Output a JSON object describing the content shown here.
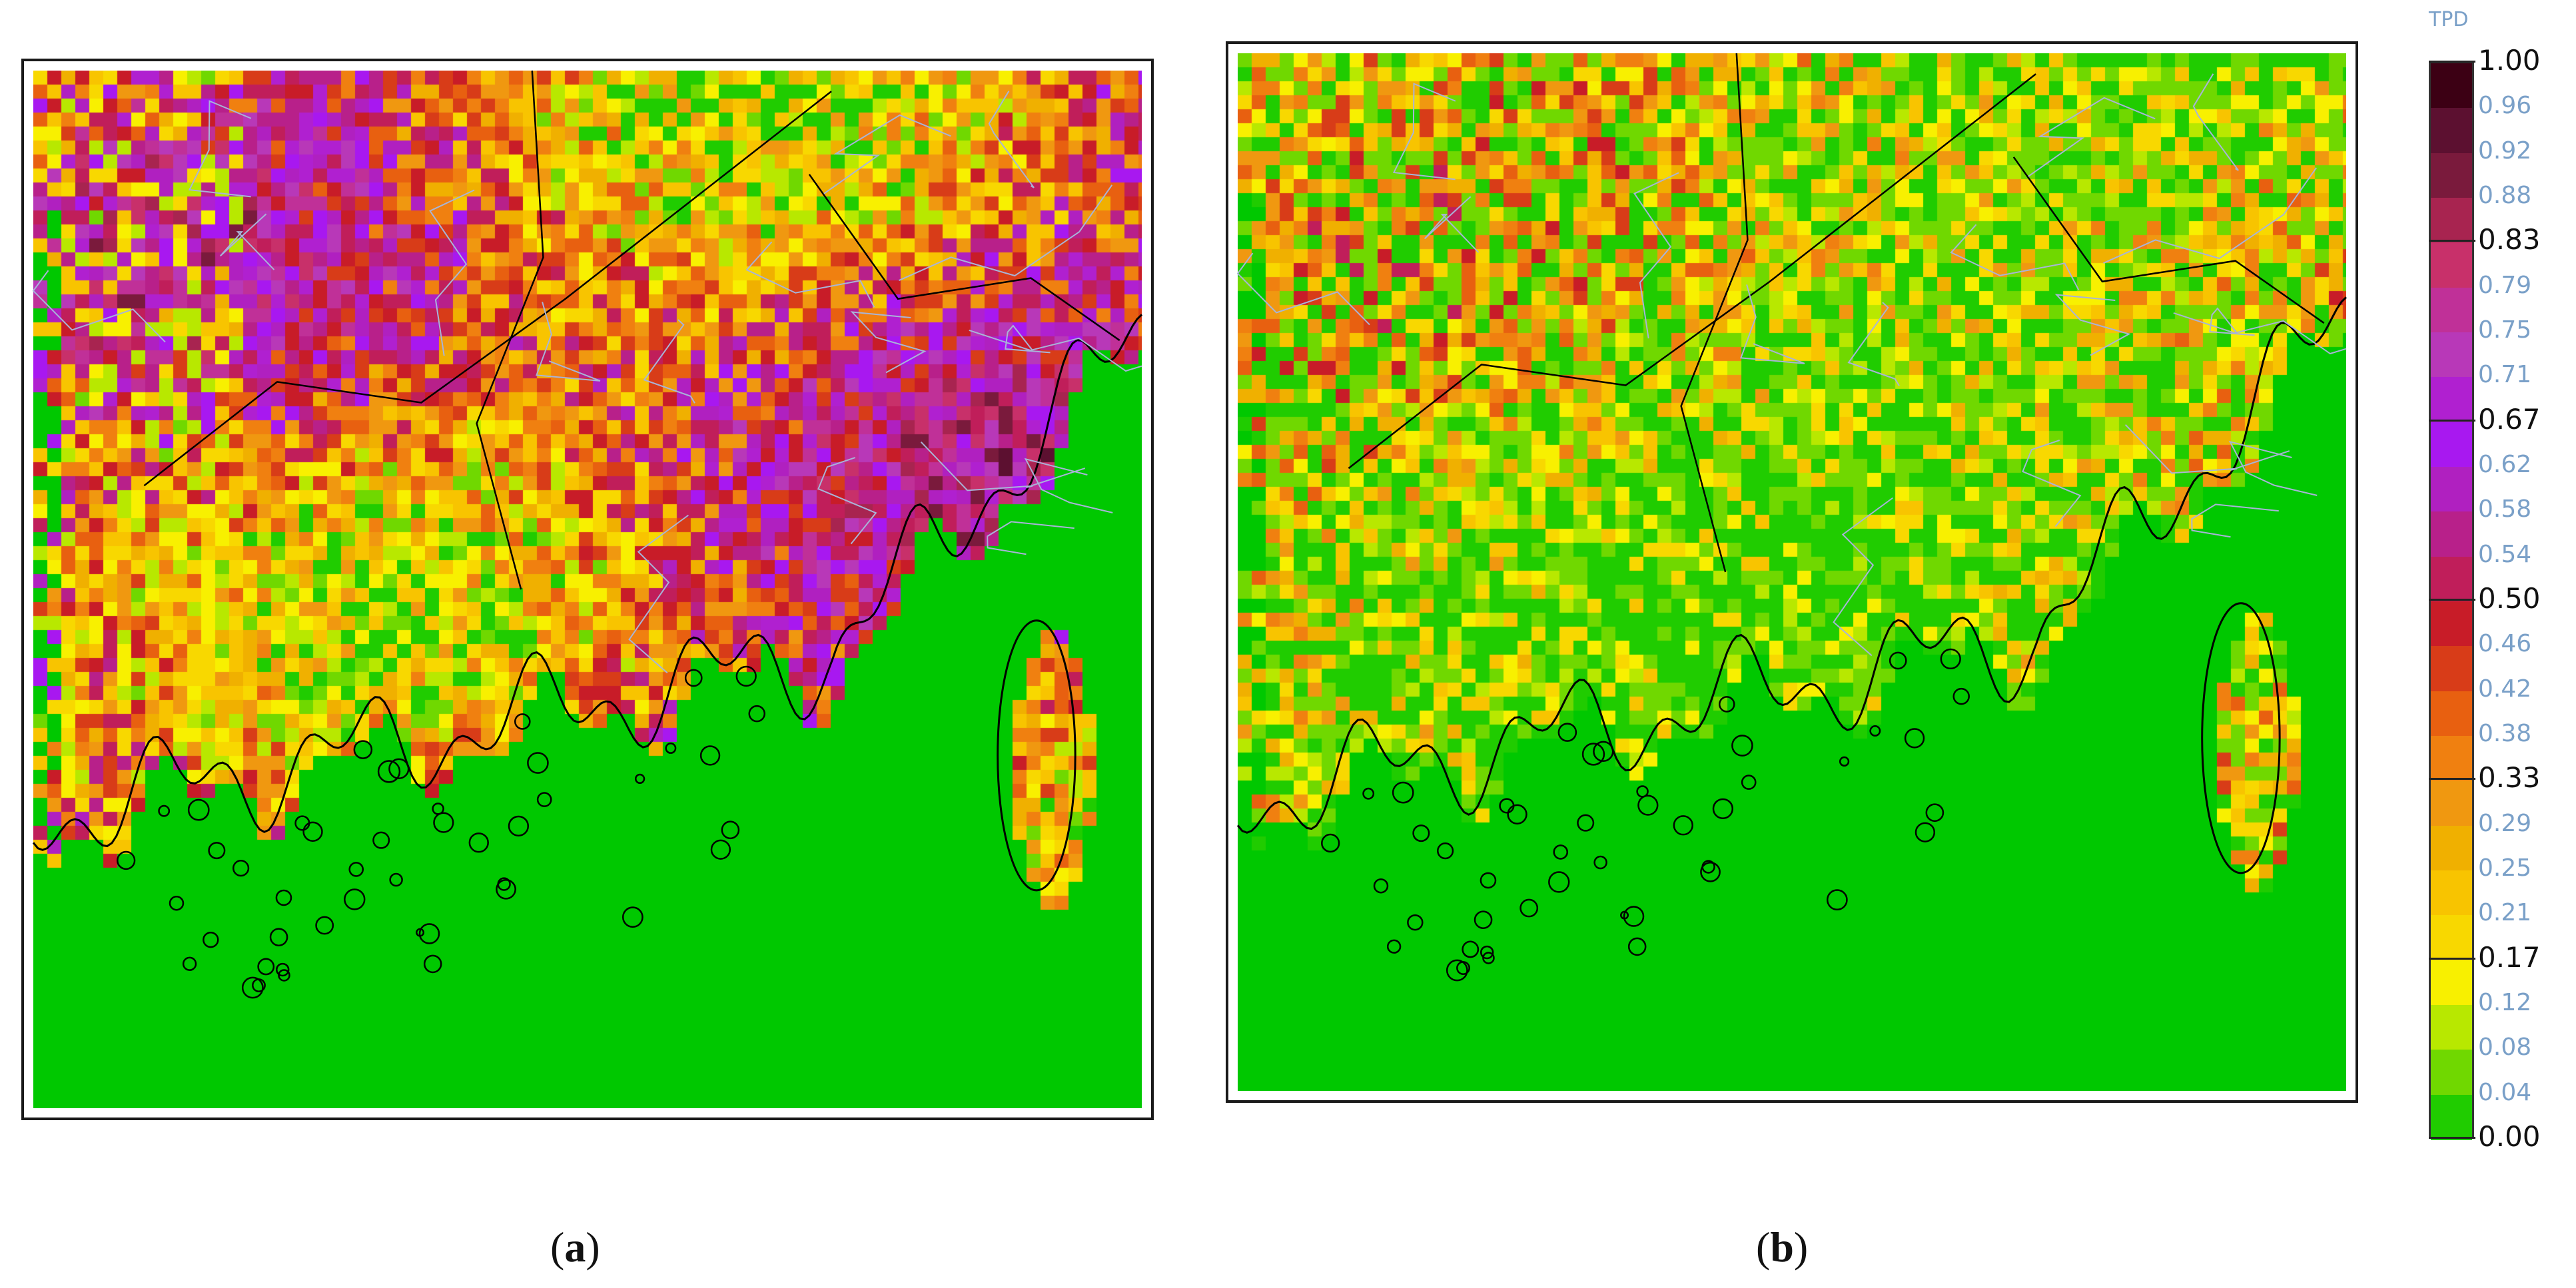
{
  "panels": [
    {
      "id": "a",
      "caption_open": "(",
      "caption_letter": "a",
      "caption_close": ")"
    },
    {
      "id": "b",
      "caption_open": "(",
      "caption_letter": "b",
      "caption_close": ")"
    }
  ],
  "legend": {
    "title": "TPD",
    "ticks": [
      "1.00",
      "0.96",
      "0.92",
      "0.88",
      "0.83",
      "0.79",
      "0.75",
      "0.71",
      "0.67",
      "0.62",
      "0.58",
      "0.54",
      "0.50",
      "0.46",
      "0.42",
      "0.38",
      "0.33",
      "0.29",
      "0.25",
      "0.21",
      "0.17",
      "0.12",
      "0.08",
      "0.04",
      "0.00"
    ],
    "major_ticks": [
      "1.00",
      "0.83",
      "0.67",
      "0.50",
      "0.33",
      "0.17",
      "0.00"
    ],
    "colors": [
      "#3c0014",
      "#5c1030",
      "#7a1a3c",
      "#a82450",
      "#c8306a",
      "#c03098",
      "#b838b8",
      "#b020d0",
      "#a818f0",
      "#b020c0",
      "#b8208a",
      "#c01e5a",
      "#c81c28",
      "#d83c18",
      "#e86010",
      "#f08010",
      "#f09810",
      "#f0b000",
      "#f8c400",
      "#f8d800",
      "#f8f000",
      "#b8e800",
      "#70d800",
      "#20cc00"
    ]
  },
  "map_colors": {
    "sea": "#00c800",
    "coastline": "#000000",
    "province_border": "#000000",
    "district_border": "#a8b4d8"
  }
}
